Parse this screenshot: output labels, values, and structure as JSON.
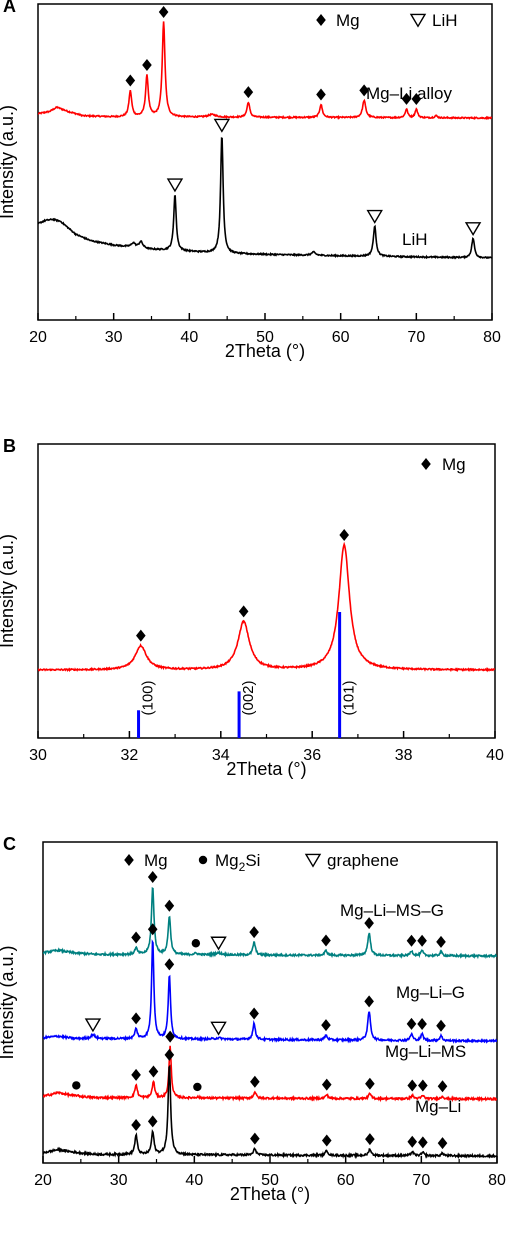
{
  "chart_data": [
    {
      "panel": "A",
      "type": "line",
      "xlabel": "2Theta (°)",
      "ylabel": "Intensity (a.u.)",
      "xlim": [
        20,
        80
      ],
      "xticks": [
        20,
        30,
        40,
        50,
        60,
        70,
        80
      ],
      "legend": [
        {
          "marker": "diamond",
          "label": "Mg"
        },
        {
          "marker": "triangle-down",
          "label": "LiH"
        }
      ],
      "series": [
        {
          "name": "Mg–Li alloy",
          "color": "#ff0000",
          "baseline_offset": 0.72,
          "background": [
            [
              20,
              0.02
            ],
            [
              21.5,
              0.03
            ],
            [
              22.5,
              0.05
            ],
            [
              24,
              0.03
            ],
            [
              26,
              0.01
            ],
            [
              30,
              0.005
            ],
            [
              80,
              0
            ]
          ],
          "peaks": [
            {
              "x": 32.2,
              "h": 0.12,
              "w": 0.22,
              "marker": "Mg"
            },
            {
              "x": 34.4,
              "h": 0.19,
              "w": 0.22,
              "marker": "Mg"
            },
            {
              "x": 36.6,
              "h": 0.44,
              "w": 0.22,
              "marker": "Mg"
            },
            {
              "x": 43.0,
              "h": 0.012,
              "w": 0.6,
              "marker": null
            },
            {
              "x": 47.8,
              "h": 0.07,
              "w": 0.22,
              "marker": "Mg"
            },
            {
              "x": 57.4,
              "h": 0.06,
              "w": 0.22,
              "marker": "Mg"
            },
            {
              "x": 63.1,
              "h": 0.08,
              "w": 0.25,
              "marker": "Mg"
            },
            {
              "x": 68.7,
              "h": 0.04,
              "w": 0.2,
              "marker": "Mg"
            },
            {
              "x": 70.0,
              "h": 0.04,
              "w": 0.2,
              "marker": "Mg"
            },
            {
              "x": 72.6,
              "h": 0.01,
              "w": 0.2,
              "marker": null
            }
          ]
        },
        {
          "name": "LiH",
          "color": "#000000",
          "baseline_offset": 0.02,
          "background": [
            [
              20,
              0.16
            ],
            [
              21,
              0.175
            ],
            [
              22,
              0.18
            ],
            [
              23,
              0.17
            ],
            [
              24,
              0.14
            ],
            [
              25,
              0.11
            ],
            [
              27,
              0.08
            ],
            [
              30,
              0.06
            ],
            [
              35,
              0.04
            ],
            [
              45,
              0.02
            ],
            [
              60,
              0.01
            ],
            [
              80,
              0
            ]
          ],
          "peaks": [
            {
              "x": 32.6,
              "h": 0.02,
              "w": 0.3,
              "marker": null
            },
            {
              "x": 33.6,
              "h": 0.03,
              "w": 0.3,
              "marker": null
            },
            {
              "x": 38.1,
              "h": 0.26,
              "w": 0.2,
              "marker": "LiH"
            },
            {
              "x": 44.3,
              "h": 0.55,
              "w": 0.2,
              "marker": "LiH"
            },
            {
              "x": 56.4,
              "h": 0.015,
              "w": 0.3,
              "marker": null
            },
            {
              "x": 64.5,
              "h": 0.14,
              "w": 0.22,
              "marker": "LiH"
            },
            {
              "x": 77.5,
              "h": 0.09,
              "w": 0.22,
              "marker": "LiH"
            }
          ]
        }
      ]
    },
    {
      "panel": "B",
      "type": "line",
      "xlabel": "2Theta (°)",
      "ylabel": "Intensity (a.u.)",
      "xlim": [
        30,
        40
      ],
      "xticks": [
        30,
        32,
        34,
        36,
        38,
        40
      ],
      "legend": [
        {
          "marker": "diamond",
          "label": "Mg"
        }
      ],
      "series": [
        {
          "name": "",
          "color": "#ff0000",
          "baseline_offset": 0.0,
          "background": [
            [
              30,
              0
            ],
            [
              40,
              0
            ]
          ],
          "peaks": [
            {
              "x": 32.25,
              "h": 0.1,
              "w": 0.15,
              "marker": "Mg"
            },
            {
              "x": 34.5,
              "h": 0.2,
              "w": 0.15,
              "marker": "Mg"
            },
            {
              "x": 36.7,
              "h": 0.52,
              "w": 0.14,
              "marker": "Mg"
            }
          ]
        }
      ],
      "reference_lines": [
        {
          "x": 32.2,
          "height": 0.22,
          "label": "(100)"
        },
        {
          "x": 34.4,
          "height": 0.37,
          "label": "(002)"
        },
        {
          "x": 36.6,
          "height": 1.0,
          "label": "(101)"
        }
      ],
      "reference_color": "#0000ff"
    },
    {
      "panel": "C",
      "type": "line",
      "xlabel": "2Theta (°)",
      "ylabel": "Intensity (a.u.)",
      "xlim": [
        20,
        80
      ],
      "xticks": [
        20,
        30,
        40,
        50,
        60,
        70,
        80
      ],
      "legend": [
        {
          "marker": "diamond",
          "label": "Mg"
        },
        {
          "marker": "circle",
          "label": "Mg",
          "sub": "2",
          "suffix": "Si"
        },
        {
          "marker": "triangle-down",
          "label": "graphene"
        }
      ],
      "series": [
        {
          "name": "Mg–Li–MS–G",
          "color": "#008080",
          "background": [
            [
              20,
              0.01
            ],
            [
              22,
              0.018
            ],
            [
              24,
              0.01
            ],
            [
              27,
              0.005
            ],
            [
              80,
              0
            ]
          ],
          "peaks": [
            {
              "x": 32.3,
              "h": 0.02,
              "w": 0.2,
              "marker": "Mg"
            },
            {
              "x": 34.5,
              "h": 0.21,
              "w": 0.2,
              "marker": "Mg"
            },
            {
              "x": 36.7,
              "h": 0.12,
              "w": 0.2,
              "marker": "Mg"
            },
            {
              "x": 40.2,
              "h": 0.004,
              "w": 0.3,
              "marker": "Mg2Si"
            },
            {
              "x": 43.2,
              "h": 0.006,
              "w": 0.5,
              "marker": "graphene"
            },
            {
              "x": 47.9,
              "h": 0.04,
              "w": 0.2,
              "marker": "Mg"
            },
            {
              "x": 57.4,
              "h": 0.015,
              "w": 0.2,
              "marker": "Mg"
            },
            {
              "x": 63.1,
              "h": 0.07,
              "w": 0.22,
              "marker": "Mg"
            },
            {
              "x": 68.7,
              "h": 0.015,
              "w": 0.2,
              "marker": "Mg"
            },
            {
              "x": 70.1,
              "h": 0.015,
              "w": 0.2,
              "marker": "Mg"
            },
            {
              "x": 72.6,
              "h": 0.012,
              "w": 0.2,
              "marker": "Mg"
            }
          ]
        },
        {
          "name": "Mg–Li–G",
          "color": "#0000ff",
          "background": [
            [
              20,
              0.01
            ],
            [
              22,
              0.015
            ],
            [
              24,
              0.008
            ],
            [
              80,
              0
            ]
          ],
          "peaks": [
            {
              "x": 26.6,
              "h": 0.012,
              "w": 0.3,
              "marker": "graphene"
            },
            {
              "x": 32.3,
              "h": 0.03,
              "w": 0.2,
              "marker": "Mg"
            },
            {
              "x": 34.5,
              "h": 0.31,
              "w": 0.18,
              "marker": "Mg"
            },
            {
              "x": 36.7,
              "h": 0.2,
              "w": 0.18,
              "marker": "Mg"
            },
            {
              "x": 43.2,
              "h": 0.004,
              "w": 0.5,
              "marker": "graphene"
            },
            {
              "x": 47.9,
              "h": 0.05,
              "w": 0.2,
              "marker": "Mg"
            },
            {
              "x": 57.4,
              "h": 0.015,
              "w": 0.2,
              "marker": "Mg"
            },
            {
              "x": 63.1,
              "h": 0.09,
              "w": 0.22,
              "marker": "Mg"
            },
            {
              "x": 68.7,
              "h": 0.02,
              "w": 0.2,
              "marker": "Mg"
            },
            {
              "x": 70.1,
              "h": 0.02,
              "w": 0.2,
              "marker": "Mg"
            },
            {
              "x": 72.6,
              "h": 0.015,
              "w": 0.2,
              "marker": "Mg"
            }
          ]
        },
        {
          "name": "Mg–Li–MS",
          "color": "#ff0000",
          "background": [
            [
              20,
              0.008
            ],
            [
              22,
              0.02
            ],
            [
              24,
              0.01
            ],
            [
              27,
              0.004
            ],
            [
              80,
              0
            ]
          ],
          "peaks": [
            {
              "x": 24.4,
              "h": 0.002,
              "w": 0.3,
              "marker": "Mg2Si"
            },
            {
              "x": 32.3,
              "h": 0.04,
              "w": 0.2,
              "marker": "Mg"
            },
            {
              "x": 34.6,
              "h": 0.05,
              "w": 0.2,
              "marker": "Mg"
            },
            {
              "x": 36.8,
              "h": 0.16,
              "w": 0.18,
              "marker": "Mg"
            },
            {
              "x": 40.4,
              "h": 0.003,
              "w": 0.3,
              "marker": "Mg2Si"
            },
            {
              "x": 48.0,
              "h": 0.02,
              "w": 0.2,
              "marker": "Mg"
            },
            {
              "x": 57.5,
              "h": 0.012,
              "w": 0.2,
              "marker": "Mg"
            },
            {
              "x": 63.2,
              "h": 0.015,
              "w": 0.2,
              "marker": "Mg"
            },
            {
              "x": 68.8,
              "h": 0.01,
              "w": 0.2,
              "marker": "Mg"
            },
            {
              "x": 70.2,
              "h": 0.01,
              "w": 0.2,
              "marker": "Mg"
            },
            {
              "x": 72.8,
              "h": 0.008,
              "w": 0.2,
              "marker": "Mg"
            }
          ]
        },
        {
          "name": "Mg–Li",
          "color": "#000000",
          "background": [
            [
              20,
              0.01
            ],
            [
              22,
              0.02
            ],
            [
              24,
              0.012
            ],
            [
              27,
              0.005
            ],
            [
              80,
              0
            ]
          ],
          "peaks": [
            {
              "x": 32.3,
              "h": 0.06,
              "w": 0.2,
              "marker": "Mg"
            },
            {
              "x": 34.5,
              "h": 0.07,
              "w": 0.2,
              "marker": "Mg"
            },
            {
              "x": 36.7,
              "h": 0.28,
              "w": 0.2,
              "marker": "Mg"
            },
            {
              "x": 48.0,
              "h": 0.02,
              "w": 0.2,
              "marker": "Mg"
            },
            {
              "x": 57.5,
              "h": 0.015,
              "w": 0.2,
              "marker": "Mg"
            },
            {
              "x": 63.2,
              "h": 0.02,
              "w": 0.2,
              "marker": "Mg"
            },
            {
              "x": 68.8,
              "h": 0.012,
              "w": 0.2,
              "marker": "Mg"
            },
            {
              "x": 70.2,
              "h": 0.01,
              "w": 0.2,
              "marker": "Mg"
            },
            {
              "x": 72.8,
              "h": 0.008,
              "w": 0.2,
              "marker": "Mg"
            }
          ]
        }
      ]
    }
  ]
}
